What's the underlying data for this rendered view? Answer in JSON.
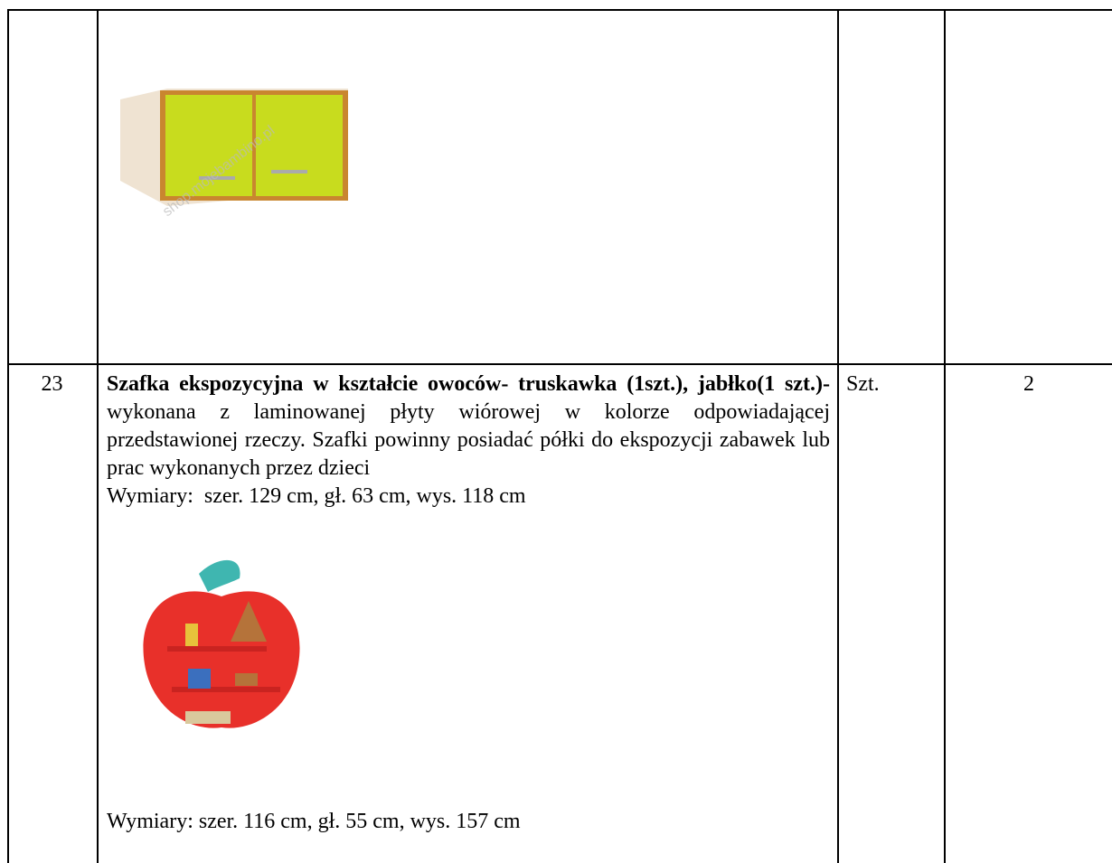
{
  "table": {
    "rows": [
      {
        "image_watermark": "shop.mojebambino.pl"
      },
      {
        "number": 23,
        "title": "Szafka ekspozycyjna w kształcie owoców- truskawka (1szt.), jabłko(1 szt.)-",
        "description": "wykonana z laminowanej płyty wiórowej w kolorze odpowiadającej przedstawionej rzeczy. Szafki powinny posiadać półki do ekspozycji zabawek lub prac wykonanych przez dzieci",
        "dimensions_1": "Wymiary:  szer. 129 cm, gł. 63 cm, wys. 118 cm",
        "dimensions_2": "Wymiary: szer. 116 cm, gł. 55 cm, wys. 157 cm",
        "unit": "Szt.",
        "quantity": 2
      }
    ]
  }
}
